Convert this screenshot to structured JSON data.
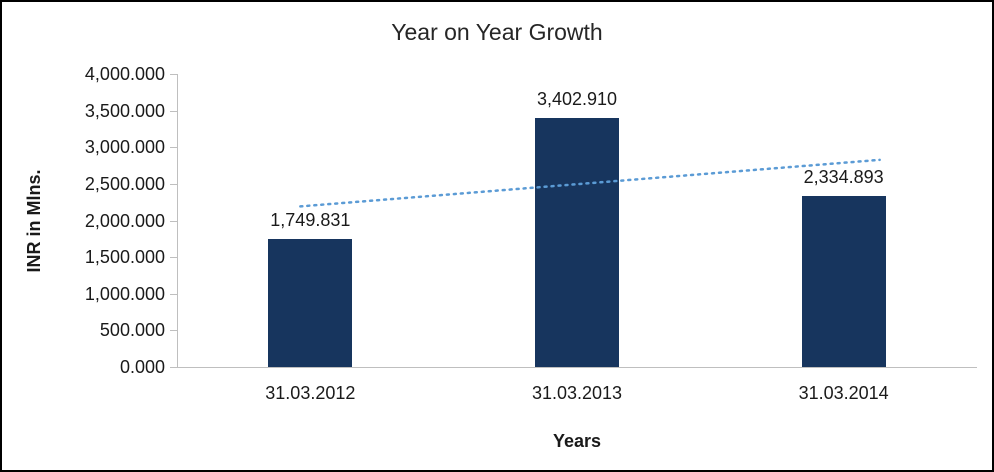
{
  "chart_data": {
    "type": "bar",
    "title": "Year on Year Growth",
    "xlabel": "Years",
    "ylabel": "INR in Mlns.",
    "categories": [
      "31.03.2012",
      "31.03.2013",
      "31.03.2014"
    ],
    "values": [
      1749.831,
      3402.91,
      2334.893
    ],
    "value_labels": [
      "1,749.831",
      "3,402.910",
      "2,334.893"
    ],
    "y_ticks": [
      "0.000",
      "500.000",
      "1,000.000",
      "1,500.000",
      "2,000.000",
      "2,500.000",
      "3,000.000",
      "3,500.000",
      "4,000.000"
    ],
    "ylim": [
      0,
      4000
    ],
    "grid": "off",
    "legend": "none",
    "bar_color": "#17355e",
    "axis_color": "#bfbfbf",
    "text_color": "#1a1a1a",
    "trendline": {
      "type": "linear",
      "style": "dotted",
      "color": "#5b9bd5",
      "values_at_categories": [
        2203.35,
        2495.88,
        2788.41
      ]
    }
  }
}
